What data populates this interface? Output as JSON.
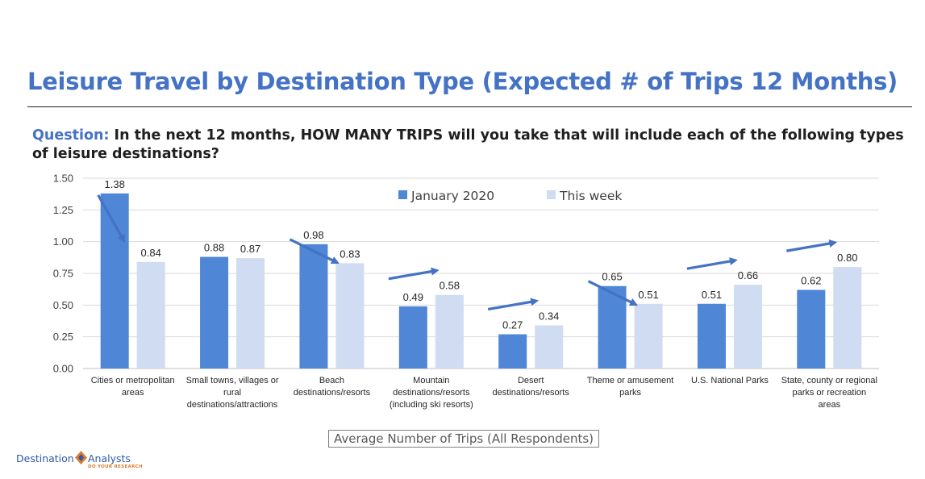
{
  "header": {
    "title": "Leisure Travel by Destination Type (Expected # of Trips 12 Months)"
  },
  "question": {
    "label": "Question:",
    "text": " In the next 12 months, HOW MANY TRIPS will you take that will include each of the following types of leisure destinations?"
  },
  "footnote": "Average Number of Trips (All Respondents)",
  "logo": {
    "word1": "Destination",
    "word2": "Analysts",
    "tagline": "DO YOUR RESEARCH",
    "colors": {
      "blue": "#2e5aa7",
      "orange": "#e07b2c"
    }
  },
  "chart_data": {
    "type": "bar",
    "categories": [
      [
        "Cities or metropolitan",
        "areas"
      ],
      [
        "Small towns, villages or",
        "rural",
        "destinations/attractions"
      ],
      [
        "Beach",
        "destinations/resorts"
      ],
      [
        "Mountain",
        "destinations/resorts",
        "(including ski resorts)"
      ],
      [
        "Desert",
        "destinations/resorts"
      ],
      [
        "Theme or amusement",
        "parks"
      ],
      [
        "U.S. National Parks"
      ],
      [
        "State, county or regional",
        "parks or recreation",
        "areas"
      ]
    ],
    "series": [
      {
        "name": "January 2020",
        "color": "#4f86d6",
        "values": [
          1.38,
          0.88,
          0.98,
          0.49,
          0.27,
          0.65,
          0.51,
          0.62
        ]
      },
      {
        "name": "This week",
        "color": "#cfdcf2",
        "values": [
          0.84,
          0.87,
          0.83,
          0.58,
          0.34,
          0.51,
          0.66,
          0.8
        ]
      }
    ],
    "data_labels": [
      [
        "1.38",
        "0.88",
        "0.98",
        "0.49",
        "0.27",
        "0.65",
        "0.51",
        "0.62"
      ],
      [
        "0.84",
        "0.87",
        "0.83",
        "0.58",
        "0.34",
        "0.51",
        "0.66",
        "0.80"
      ]
    ],
    "ylim": [
      0,
      1.5
    ],
    "yticks": [
      "0.00",
      "0.25",
      "0.50",
      "0.75",
      "1.00",
      "1.25",
      "1.50"
    ],
    "grid": true,
    "legend": "top-center",
    "arrows": [
      "down",
      "none",
      "down",
      "up",
      "up",
      "down",
      "up",
      "up"
    ],
    "arrow_color": "#4472c4"
  }
}
